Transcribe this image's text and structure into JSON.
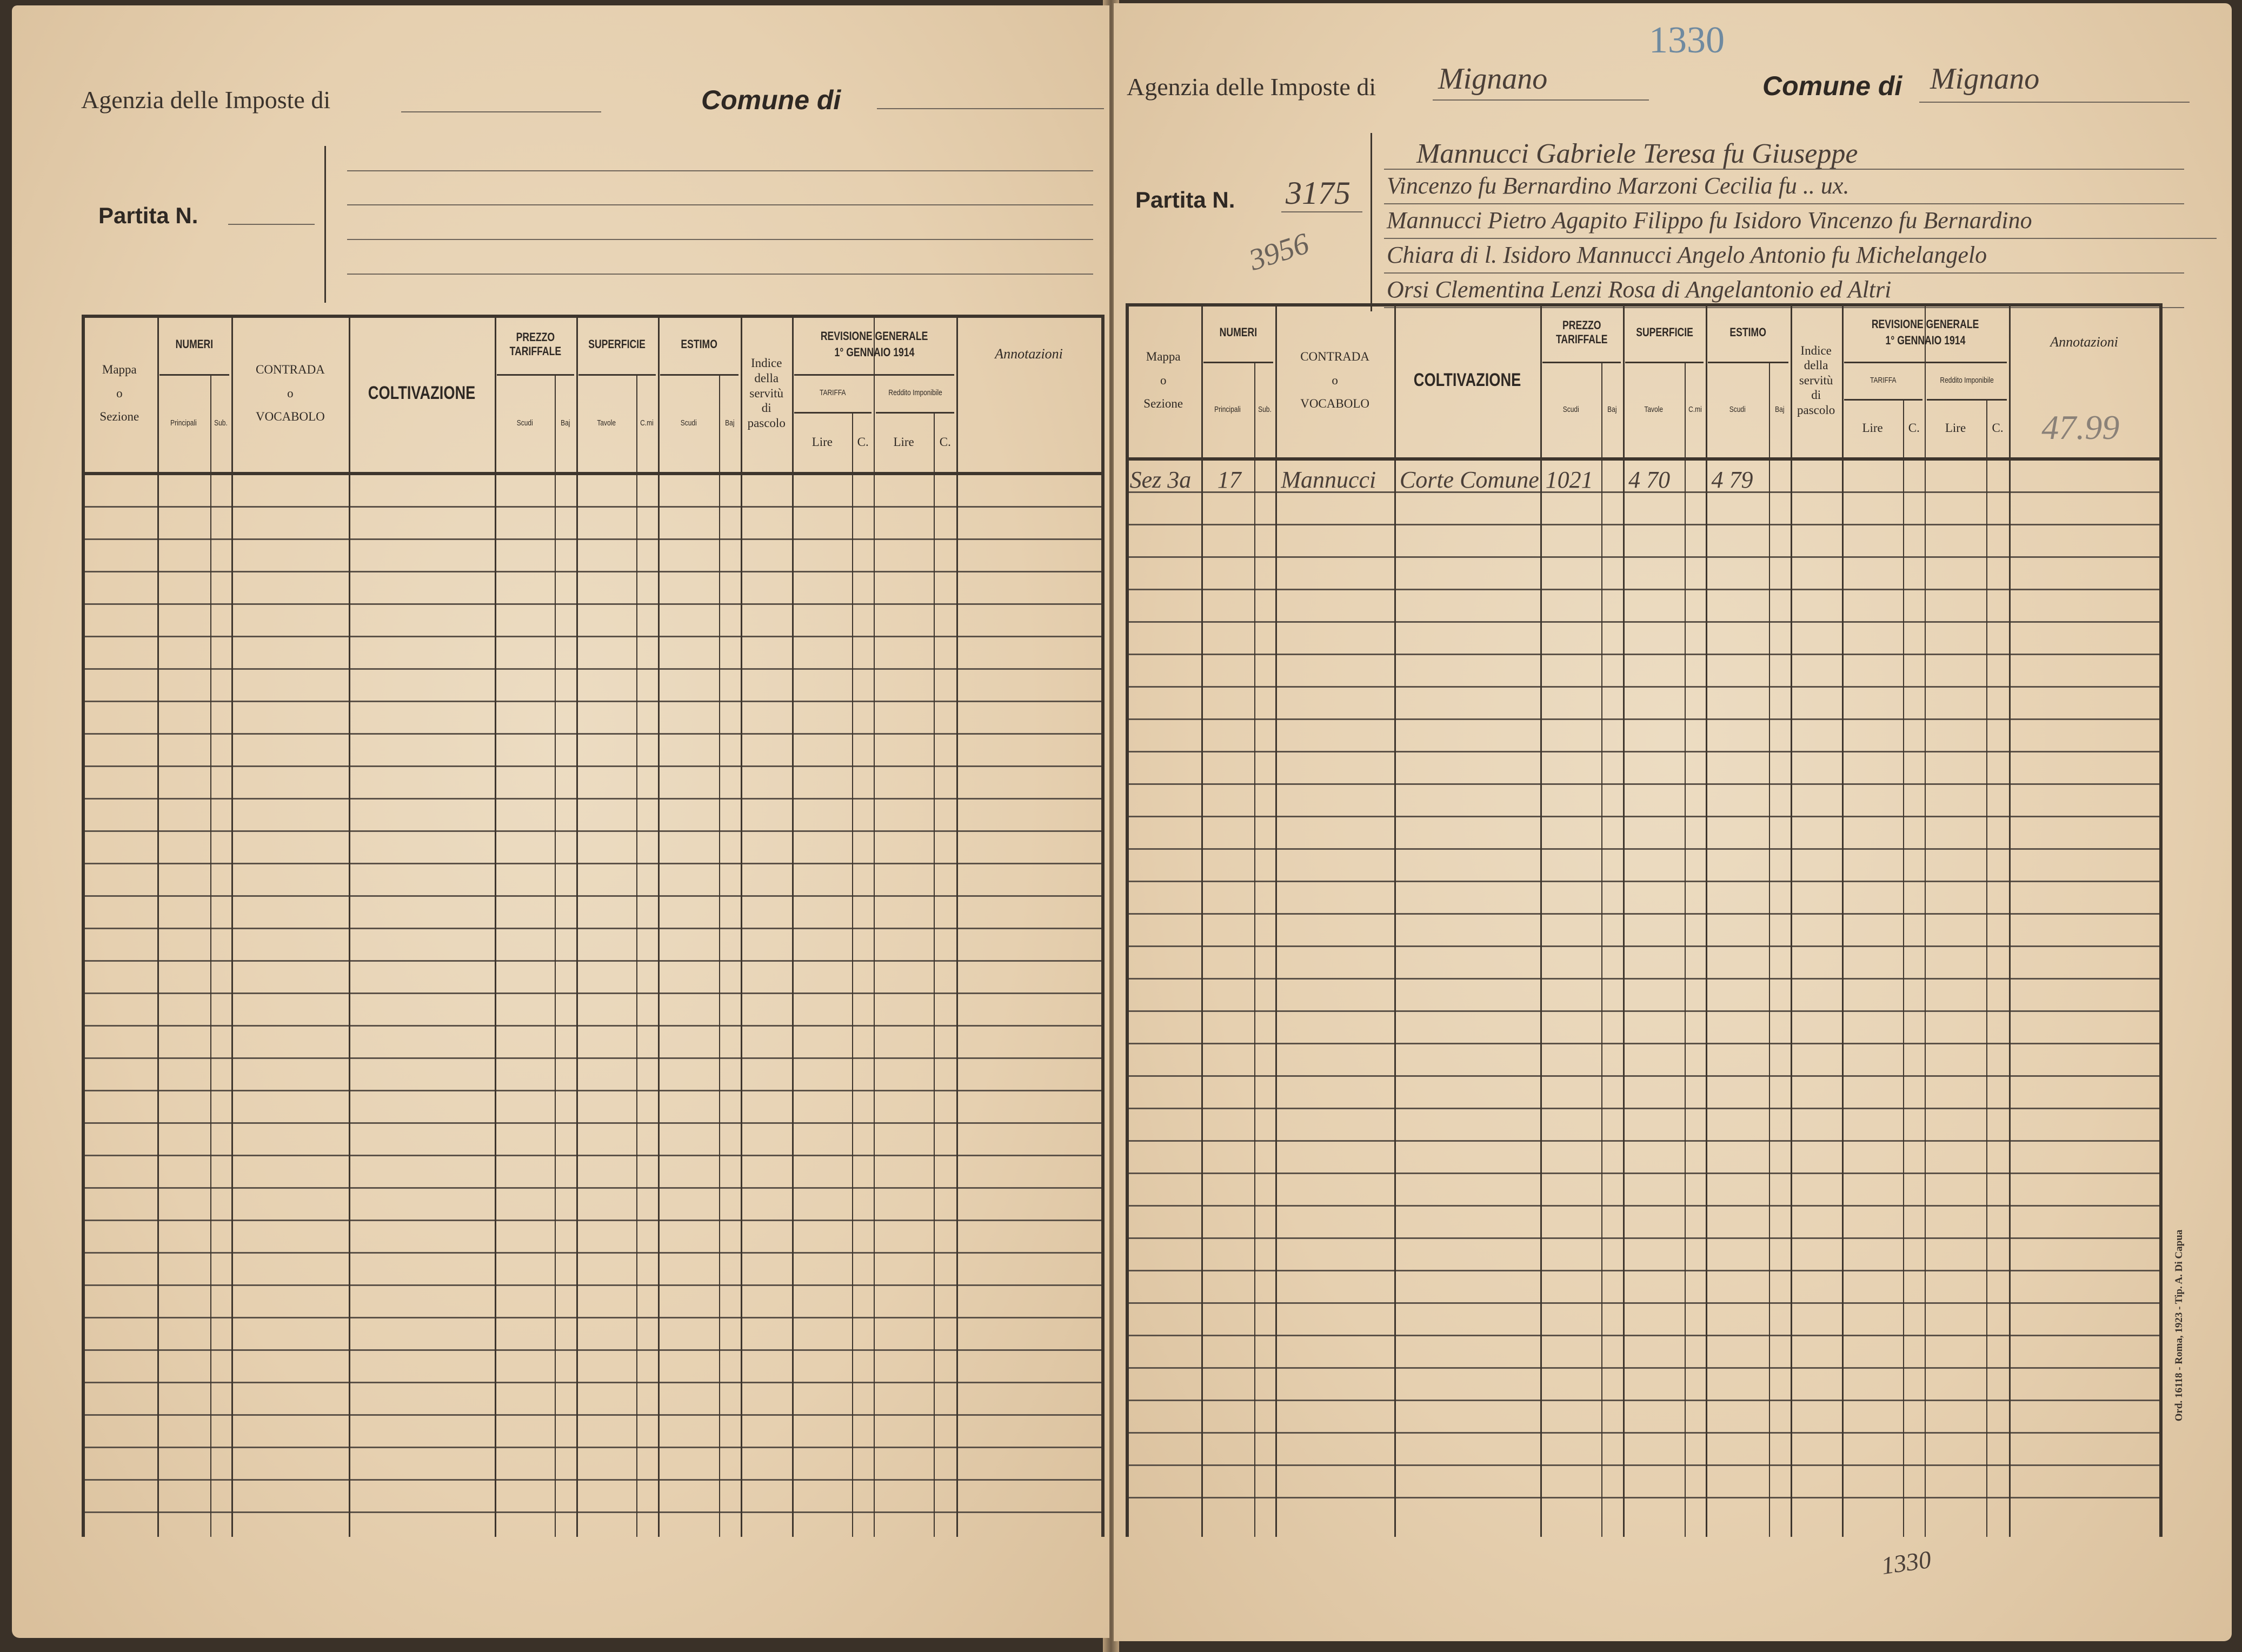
{
  "form": {
    "agency_label": "Agenzia delle Imposte di",
    "comune_label": "Comune di",
    "partita_label": "Partita N.",
    "printer_note": "Ord. 16118 - Roma, 1923 - Tip. A. Di Capua"
  },
  "table_headers": {
    "mappa": [
      "Mappa",
      "o",
      "Sezione"
    ],
    "numeri": "NUMERI",
    "principali": "Principali",
    "sub": "Sub.",
    "contrada": [
      "CONTRADA",
      "o",
      "VOCABOLO"
    ],
    "coltivazione": "COLTIVAZIONE",
    "prezzo_tariffale": "PREZZO TARIFFALE",
    "superficie": "SUPERFICIE",
    "estimo": "ESTIMO",
    "scudi": "Scudi",
    "baj": "Baj",
    "tavole": "Tavole",
    "cmi": "C.mi",
    "indice": [
      "Indice",
      "della",
      "servitù",
      "di",
      "pascolo"
    ],
    "revisione": [
      "REVISIONE GENERALE",
      "1° GENNAIO 1914"
    ],
    "tariffa": "TARIFFA",
    "reddito": "Reddito Imponibile",
    "lire": "Lire",
    "c": "C.",
    "annotazioni": "Annotazioni"
  },
  "left_page": {
    "agency_value": "",
    "comune_value": "",
    "partita_value": "",
    "owner_lines": [
      "",
      "",
      "",
      ""
    ]
  },
  "right_page": {
    "agency_value": "Mignano",
    "stamp_number": "1330",
    "comune_value": "Mignano",
    "partita_value": "3175",
    "partita_alt": "3956",
    "owner_lines": [
      "Mannucci Gabriele Teresa fu Giuseppe",
      "Vincenzo fu Bernardino Marzoni Cecilia fu .. ux.",
      "Mannucci Pietro Agapito Filippo fu Isidoro Vincenzo fu Bernardino",
      "Chiara di l. Isidoro Mannucci Angelo Antonio fu Michelangelo",
      "Orsi Clementina Lenzi Rosa di Angelantonio ed Altri"
    ],
    "annotation_total": "47.99",
    "entries": [
      {
        "mappa": "Sez 3a",
        "principali": "17",
        "contrada": "Mannucci",
        "coltivazione": "Corte Comune",
        "prezzo_scudi": "1021",
        "superficie_tavole": "4 70",
        "estimo_scudi": "4 79"
      }
    ],
    "footer_number": "1330"
  }
}
